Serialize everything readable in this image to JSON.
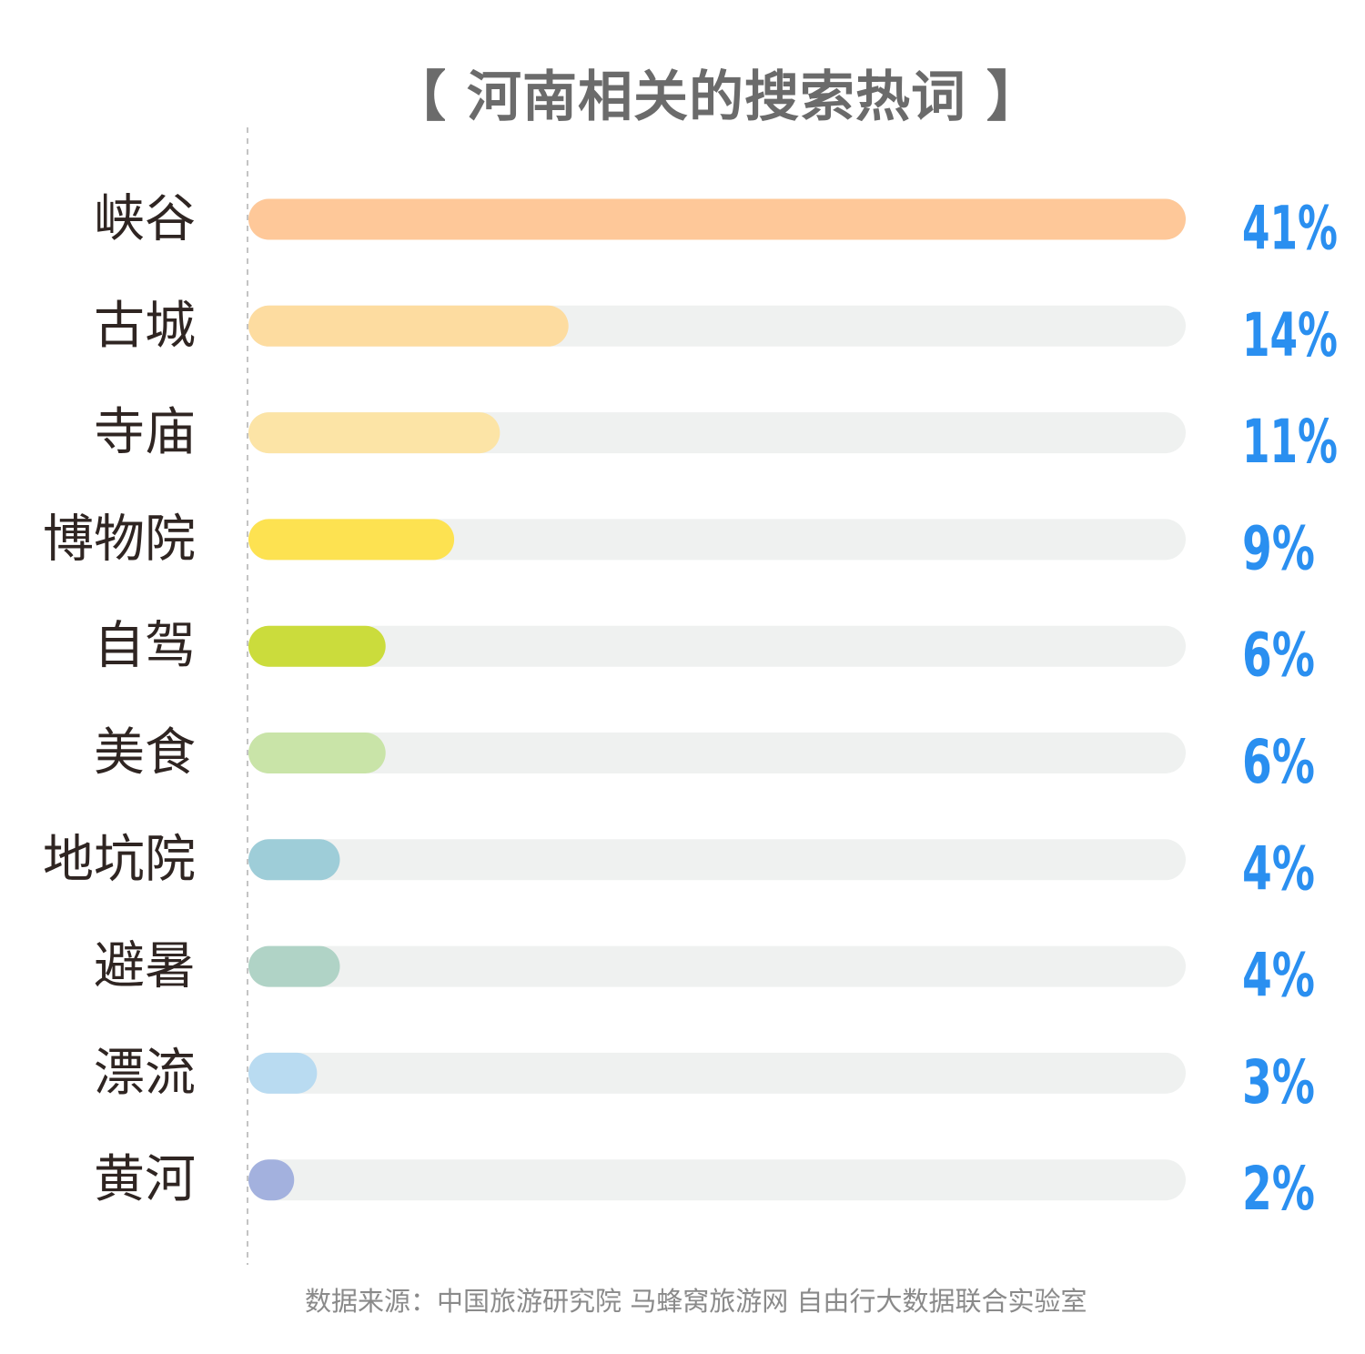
{
  "chart_data": {
    "type": "bar",
    "orientation": "horizontal",
    "title": "【 河南相关的搜索热词 】",
    "categories": [
      "峡谷",
      "古城",
      "寺庙",
      "博物院",
      "自驾",
      "美食",
      "地坑院",
      "避暑",
      "漂流",
      "黄河"
    ],
    "values": [
      41,
      14,
      11,
      9,
      6,
      6,
      4,
      4,
      3,
      2
    ],
    "value_labels": [
      "41%",
      "14%",
      "11%",
      "9%",
      "6%",
      "6%",
      "4%",
      "4%",
      "3%",
      "2%"
    ],
    "unit": "%",
    "grid": false,
    "legend": "none",
    "colors": [
      "#fec899",
      "#fddca0",
      "#fce4a6",
      "#fde251",
      "#cbdc3c",
      "#c9e4a8",
      "#9ecdd8",
      "#b0d3c6",
      "#b9dbf1",
      "#a3b1de"
    ],
    "track_color": "#eff1f0",
    "label_color": "#2a8ff0"
  },
  "source_note": "数据来源：中国旅游研究院 马蜂窝旅游网 自由行大数据联合实验室"
}
